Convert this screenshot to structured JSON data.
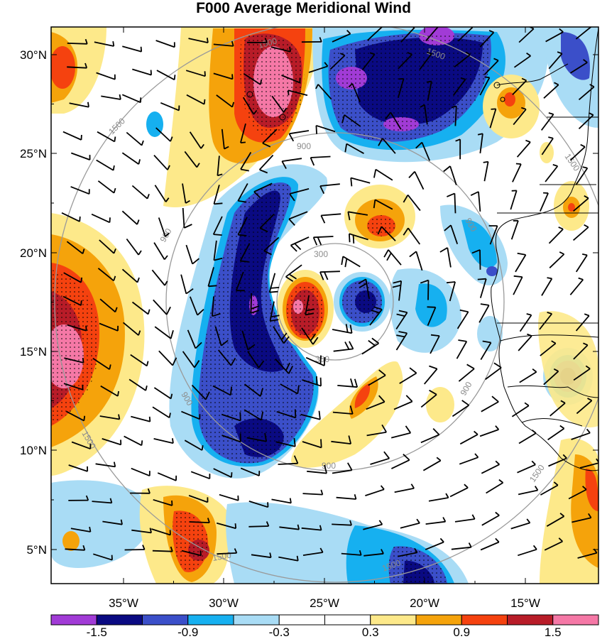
{
  "title": "F000 Average Meridional Wind",
  "axes": {
    "lon_labels": [
      "35°W",
      "30°W",
      "25°W",
      "20°W",
      "15°W"
    ],
    "lat_labels": [
      "30°N",
      "25°N",
      "20°N",
      "15°N",
      "10°N",
      "5°N"
    ]
  },
  "range_rings": [
    {
      "label": "300"
    },
    {
      "label": "900"
    },
    {
      "label": "1500"
    }
  ],
  "colorbar": {
    "colors": [
      "#a13bd6",
      "#0a0a82",
      "#3b4fc9",
      "#16b0f0",
      "#a9dcf5",
      "#ffffff",
      "#ffffff",
      "#fde98a",
      "#f5a30b",
      "#f5420f",
      "#b81c28",
      "#f578a6"
    ],
    "labels": [
      "-1.5",
      "-0.9",
      "-0.3",
      "0.3",
      "0.9",
      "1.5"
    ]
  },
  "colors": {
    "ring": "#9a9a9a",
    "coast": "#000000",
    "barb": "#000000"
  }
}
